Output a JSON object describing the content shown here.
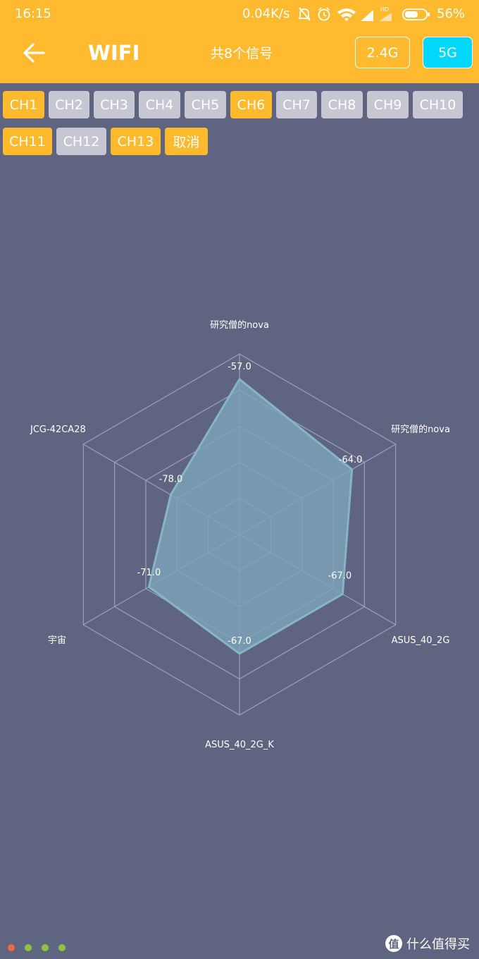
{
  "status_bar": {
    "time": "16:15",
    "net_speed": "0.04K/s",
    "hd_label": "HD",
    "battery_pct": "56%",
    "icons": [
      "mute-bell-icon",
      "alarm-icon",
      "wifi-icon",
      "cell-signal-icon",
      "cell-signal-hd-icon",
      "battery-icon"
    ]
  },
  "header": {
    "title": "WIFI",
    "signal_count": "共8个信号",
    "bands": [
      {
        "label": "2.4G",
        "selected": false
      },
      {
        "label": "5G",
        "selected": true
      }
    ]
  },
  "channels": [
    {
      "label": "CH1",
      "active": true
    },
    {
      "label": "CH2",
      "active": false
    },
    {
      "label": "CH3",
      "active": false
    },
    {
      "label": "CH4",
      "active": false
    },
    {
      "label": "CH5",
      "active": false
    },
    {
      "label": "CH6",
      "active": true
    },
    {
      "label": "CH7",
      "active": false
    },
    {
      "label": "CH8",
      "active": false
    },
    {
      "label": "CH9",
      "active": false
    },
    {
      "label": "CH10",
      "active": false
    },
    {
      "label": "CH11",
      "active": true
    },
    {
      "label": "CH12",
      "active": false
    },
    {
      "label": "CH13",
      "active": true
    },
    {
      "label": "取消",
      "active": true
    }
  ],
  "chart_data": {
    "type": "radar",
    "axes": [
      "研究僧的nova",
      "研究僧的nova",
      "ASUS_40_2G",
      "ASUS_40_2G_K",
      "宇宙",
      "JCG-42CA28"
    ],
    "values": [
      -57.0,
      -64.0,
      -67.0,
      -67.0,
      -71.0,
      -78.0
    ],
    "value_labels": [
      "-57.0",
      "-64.0",
      "-67.0",
      "-67.0",
      "-71.0",
      "-78.0"
    ],
    "rings": 5,
    "range": [
      -100,
      -50
    ],
    "colors": {
      "fill": "#7da4bb",
      "stroke": "#86b6c5",
      "grid": "#9aa0b8"
    }
  },
  "page_dots": [
    "#f06a3a",
    "#8cc63f",
    "#8cc63f",
    "#8cc63f"
  ],
  "watermark": {
    "badge": "值",
    "text": "什么值得买"
  }
}
